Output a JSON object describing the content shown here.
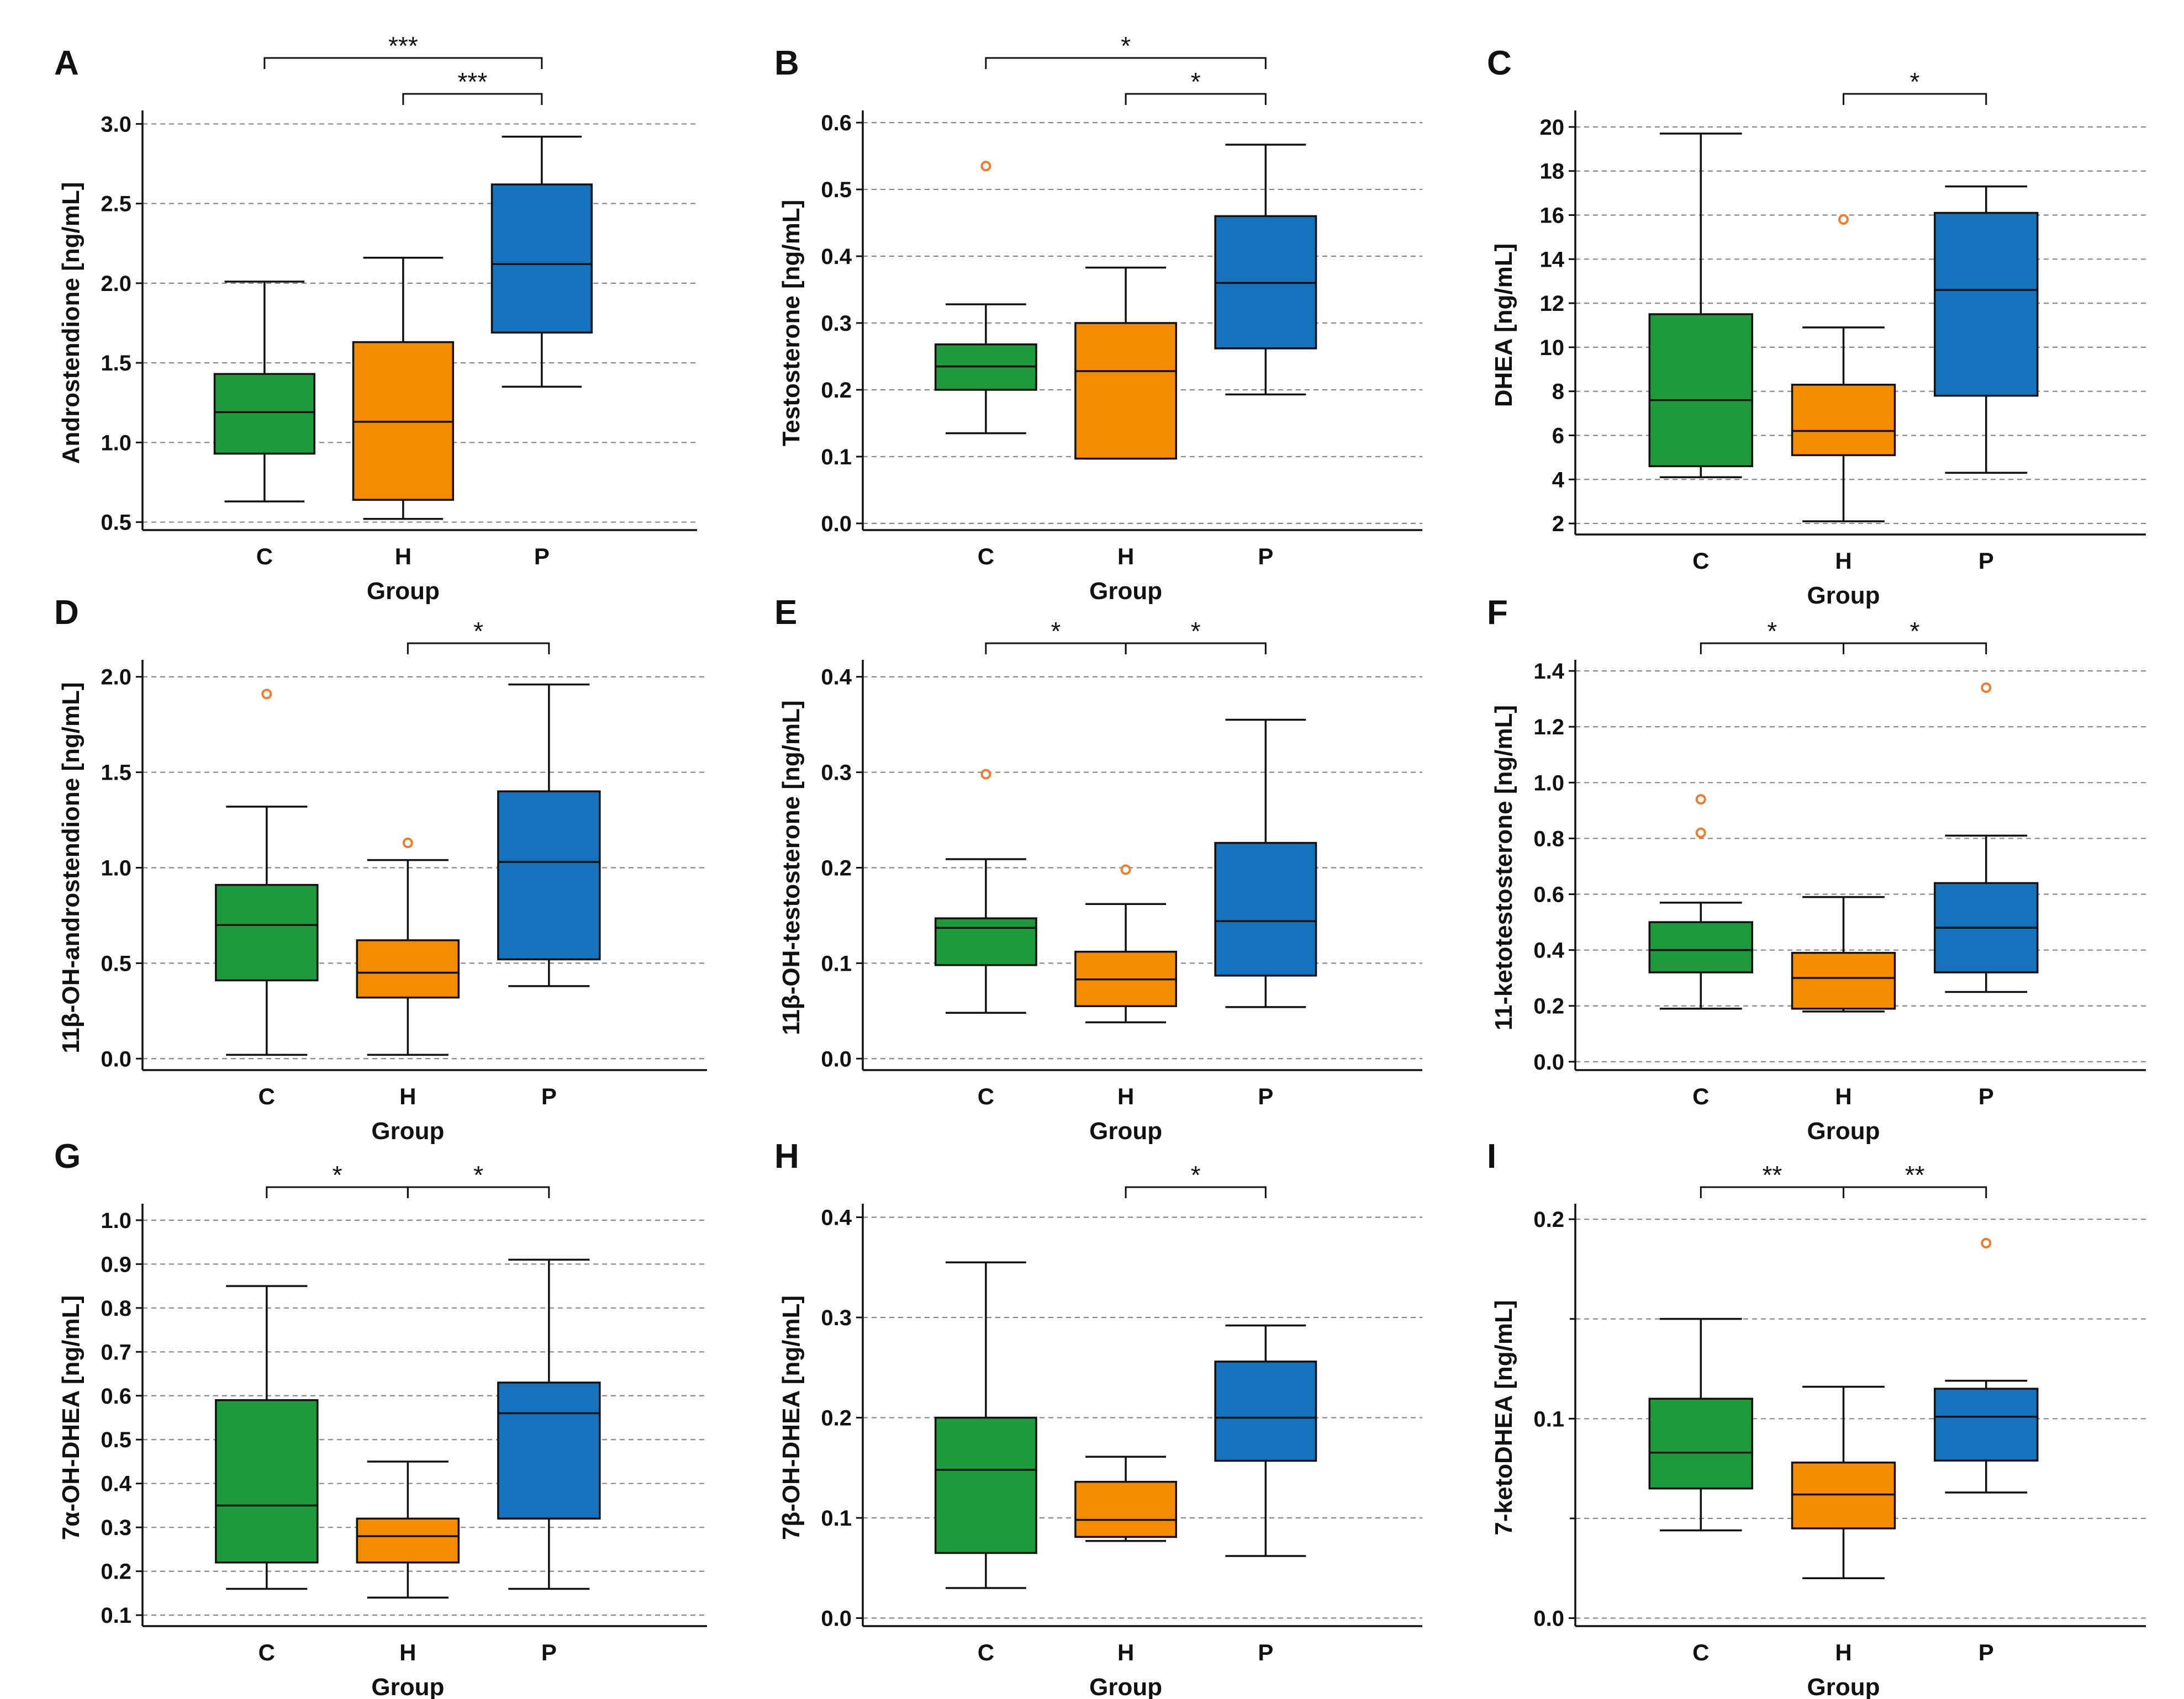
{
  "chart_data": [
    {
      "letter": "A",
      "type": "boxplot",
      "ylabel": "Androstendione [ng/mL]",
      "xlabel": "Group",
      "ylim": [
        0.45,
        3.05
      ],
      "ticks": [
        0.5,
        1.0,
        1.5,
        2.0,
        2.5,
        3.0
      ],
      "tick_labels": [
        "0.5",
        "1.0",
        "1.5",
        "2.0",
        "2.5",
        "3.0"
      ],
      "grid": true,
      "categories": [
        "C",
        "H",
        "P"
      ],
      "boxes": [
        {
          "group": "C",
          "min": 0.63,
          "q1": 0.93,
          "median": 1.19,
          "q3": 1.43,
          "max": 2.01,
          "outliers": []
        },
        {
          "group": "H",
          "min": 0.52,
          "q1": 0.64,
          "median": 1.13,
          "q3": 1.63,
          "max": 2.16,
          "outliers": []
        },
        {
          "group": "P",
          "min": 1.35,
          "q1": 1.69,
          "median": 2.12,
          "q3": 2.62,
          "max": 2.92,
          "outliers": []
        }
      ],
      "significance": [
        {
          "from": 0,
          "to": 2,
          "label": "***",
          "level": 0
        },
        {
          "from": 1,
          "to": 2,
          "label": "***",
          "level": 1
        }
      ]
    },
    {
      "letter": "B",
      "type": "boxplot",
      "ylabel": "Testosterone [ng/mL]",
      "xlabel": "Group",
      "ylim": [
        -0.01,
        0.61
      ],
      "ticks": [
        0.0,
        0.1,
        0.2,
        0.3,
        0.4,
        0.5,
        0.6
      ],
      "tick_labels": [
        "0.0",
        "0.1",
        "0.2",
        "0.3",
        "0.4",
        "0.5",
        "0.6"
      ],
      "grid": true,
      "categories": [
        "C",
        "H",
        "P"
      ],
      "boxes": [
        {
          "group": "C",
          "min": 0.135,
          "q1": 0.2,
          "median": 0.235,
          "q3": 0.268,
          "max": 0.328,
          "outliers": [
            0.535
          ]
        },
        {
          "group": "H",
          "min": 0.097,
          "q1": 0.097,
          "median": 0.228,
          "q3": 0.3,
          "max": 0.383,
          "outliers": []
        },
        {
          "group": "P",
          "min": 0.193,
          "q1": 0.262,
          "median": 0.36,
          "q3": 0.46,
          "max": 0.567,
          "outliers": []
        }
      ],
      "significance": [
        {
          "from": 0,
          "to": 2,
          "label": "*",
          "level": 0
        },
        {
          "from": 1,
          "to": 2,
          "label": "*",
          "level": 1
        }
      ]
    },
    {
      "letter": "C",
      "type": "boxplot",
      "ylabel": "DHEA [ng/mL]",
      "xlabel": "Group",
      "ylim": [
        1.5,
        20.5
      ],
      "ticks": [
        2,
        4,
        6,
        8,
        10,
        12,
        14,
        16,
        18,
        20
      ],
      "tick_labels": [
        "2",
        "4",
        "6",
        "8",
        "10",
        "12",
        "14",
        "16",
        "18",
        "20"
      ],
      "grid": true,
      "categories": [
        "C",
        "H",
        "P"
      ],
      "boxes": [
        {
          "group": "C",
          "min": 4.1,
          "q1": 4.6,
          "median": 7.6,
          "q3": 11.5,
          "max": 19.7,
          "outliers": []
        },
        {
          "group": "H",
          "min": 2.1,
          "q1": 5.1,
          "median": 6.2,
          "q3": 8.3,
          "max": 10.9,
          "outliers": [
            15.8
          ]
        },
        {
          "group": "P",
          "min": 4.3,
          "q1": 7.8,
          "median": 12.6,
          "q3": 16.1,
          "max": 17.3,
          "outliers": []
        }
      ],
      "significance": [
        {
          "from": 1,
          "to": 2,
          "label": "*",
          "level": 1
        }
      ]
    },
    {
      "letter": "D",
      "type": "boxplot",
      "ylabel": "11β-OH-androstendione [ng/mL]",
      "xlabel": "Group",
      "ylim": [
        -0.06,
        2.06
      ],
      "ticks": [
        0.0,
        0.5,
        1.0,
        1.5,
        2.0
      ],
      "tick_labels": [
        "0.0",
        "0.5",
        "1.0",
        "1.5",
        "2.0"
      ],
      "grid": true,
      "categories": [
        "C",
        "H",
        "P"
      ],
      "boxes": [
        {
          "group": "C",
          "min": 0.02,
          "q1": 0.41,
          "median": 0.7,
          "q3": 0.91,
          "max": 1.32,
          "outliers": [
            1.91
          ]
        },
        {
          "group": "H",
          "min": 0.02,
          "q1": 0.32,
          "median": 0.45,
          "q3": 0.62,
          "max": 1.04,
          "outliers": [
            1.13
          ]
        },
        {
          "group": "P",
          "min": 0.38,
          "q1": 0.52,
          "median": 1.03,
          "q3": 1.4,
          "max": 1.96,
          "outliers": []
        }
      ],
      "significance": [
        {
          "from": 1,
          "to": 2,
          "label": "*",
          "level": 1
        }
      ]
    },
    {
      "letter": "E",
      "type": "boxplot",
      "ylabel": "11β-OH-testosterone [ng/mL]",
      "xlabel": "Group",
      "ylim": [
        -0.012,
        0.412
      ],
      "ticks": [
        0.0,
        0.1,
        0.2,
        0.3,
        0.4
      ],
      "tick_labels": [
        "0.0",
        "0.1",
        "0.2",
        "0.3",
        "0.4"
      ],
      "grid": true,
      "categories": [
        "C",
        "H",
        "P"
      ],
      "boxes": [
        {
          "group": "C",
          "min": 0.048,
          "q1": 0.098,
          "median": 0.137,
          "q3": 0.147,
          "max": 0.209,
          "outliers": [
            0.298
          ]
        },
        {
          "group": "H",
          "min": 0.038,
          "q1": 0.055,
          "median": 0.083,
          "q3": 0.112,
          "max": 0.162,
          "outliers": [
            0.198
          ]
        },
        {
          "group": "P",
          "min": 0.054,
          "q1": 0.087,
          "median": 0.144,
          "q3": 0.226,
          "max": 0.355,
          "outliers": []
        }
      ],
      "significance": [
        {
          "from": 0,
          "to": 1,
          "label": "*",
          "level": 1
        },
        {
          "from": 1,
          "to": 2,
          "label": "*",
          "level": 1
        }
      ]
    },
    {
      "letter": "F",
      "type": "boxplot",
      "ylabel": "11-ketotestosterone [ng/mL]",
      "xlabel": "Group",
      "ylim": [
        -0.03,
        1.42
      ],
      "ticks": [
        0.0,
        0.2,
        0.4,
        0.6,
        0.8,
        1.0,
        1.2,
        1.4
      ],
      "tick_labels": [
        "0.0",
        "0.2",
        "0.4",
        "0.6",
        "0.8",
        "1.0",
        "1.2",
        "1.4"
      ],
      "grid": true,
      "categories": [
        "C",
        "H",
        "P"
      ],
      "boxes": [
        {
          "group": "C",
          "min": 0.19,
          "q1": 0.32,
          "median": 0.4,
          "q3": 0.5,
          "max": 0.57,
          "outliers": [
            0.94,
            0.82
          ]
        },
        {
          "group": "H",
          "min": 0.18,
          "q1": 0.19,
          "median": 0.3,
          "q3": 0.39,
          "max": 0.59,
          "outliers": []
        },
        {
          "group": "P",
          "min": 0.25,
          "q1": 0.32,
          "median": 0.48,
          "q3": 0.64,
          "max": 0.81,
          "outliers": [
            1.34
          ]
        }
      ],
      "significance": [
        {
          "from": 0,
          "to": 1,
          "label": "*",
          "level": 1
        },
        {
          "from": 1,
          "to": 2,
          "label": "*",
          "level": 1
        }
      ]
    },
    {
      "letter": "G",
      "type": "boxplot",
      "ylabel": "7α-OH-DHEA [ng/mL]",
      "xlabel": "Group",
      "ylim": [
        0.075,
        1.025
      ],
      "ticks": [
        0.1,
        0.2,
        0.3,
        0.4,
        0.5,
        0.6,
        0.7,
        0.8,
        0.9,
        1.0
      ],
      "tick_labels": [
        "0.1",
        "0.2",
        "0.3",
        "0.4",
        "0.5",
        "0.6",
        "0.7",
        "0.8",
        "0.9",
        "1.0"
      ],
      "grid": true,
      "categories": [
        "C",
        "H",
        "P"
      ],
      "boxes": [
        {
          "group": "C",
          "min": 0.16,
          "q1": 0.22,
          "median": 0.35,
          "q3": 0.59,
          "max": 0.85,
          "outliers": []
        },
        {
          "group": "H",
          "min": 0.14,
          "q1": 0.22,
          "median": 0.28,
          "q3": 0.32,
          "max": 0.45,
          "outliers": []
        },
        {
          "group": "P",
          "min": 0.16,
          "q1": 0.32,
          "median": 0.56,
          "q3": 0.63,
          "max": 0.91,
          "outliers": []
        }
      ],
      "significance": [
        {
          "from": 0,
          "to": 1,
          "label": "*",
          "level": 1
        },
        {
          "from": 1,
          "to": 2,
          "label": "*",
          "level": 1
        }
      ]
    },
    {
      "letter": "H",
      "type": "boxplot",
      "ylabel": "7β-OH-DHEA [ng/mL]",
      "xlabel": "Group",
      "ylim": [
        -0.008,
        0.408
      ],
      "ticks": [
        0.0,
        0.1,
        0.2,
        0.3,
        0.4
      ],
      "tick_labels": [
        "0.0",
        "0.1",
        "0.2",
        "0.3",
        "0.4"
      ],
      "grid": true,
      "categories": [
        "C",
        "H",
        "P"
      ],
      "boxes": [
        {
          "group": "C",
          "min": 0.03,
          "q1": 0.065,
          "median": 0.148,
          "q3": 0.2,
          "max": 0.355,
          "outliers": []
        },
        {
          "group": "H",
          "min": 0.077,
          "q1": 0.081,
          "median": 0.098,
          "q3": 0.136,
          "max": 0.161,
          "outliers": []
        },
        {
          "group": "P",
          "min": 0.062,
          "q1": 0.157,
          "median": 0.2,
          "q3": 0.256,
          "max": 0.292,
          "outliers": []
        }
      ],
      "significance": [
        {
          "from": 1,
          "to": 2,
          "label": "*",
          "level": 1
        }
      ]
    },
    {
      "letter": "I",
      "type": "boxplot",
      "ylabel": "7-ketoDHEA [ng/mL]",
      "xlabel": "Group",
      "ylim": [
        -0.004,
        0.205
      ],
      "ticks": [
        0.0,
        0.1,
        0.2
      ],
      "tick_labels": [
        "0.0",
        "0.1",
        "0.2"
      ],
      "grid": true,
      "minor_ticks": [
        0.05,
        0.15
      ],
      "categories": [
        "C",
        "H",
        "P"
      ],
      "boxes": [
        {
          "group": "C",
          "min": 0.044,
          "q1": 0.065,
          "median": 0.083,
          "q3": 0.11,
          "max": 0.15,
          "outliers": []
        },
        {
          "group": "H",
          "min": 0.02,
          "q1": 0.045,
          "median": 0.062,
          "q3": 0.078,
          "max": 0.116,
          "outliers": []
        },
        {
          "group": "P",
          "min": 0.063,
          "q1": 0.079,
          "median": 0.101,
          "q3": 0.115,
          "max": 0.119,
          "outliers": [
            0.188
          ]
        }
      ],
      "significance": [
        {
          "from": 0,
          "to": 1,
          "label": "**",
          "level": 1
        },
        {
          "from": 1,
          "to": 2,
          "label": "**",
          "level": 1
        }
      ]
    }
  ],
  "colors": {
    "C": "#1e9a3c",
    "H": "#f58c00",
    "P": "#1572bd",
    "outlier": "#f07b28",
    "grid": "#888888",
    "axis": "#111111"
  }
}
